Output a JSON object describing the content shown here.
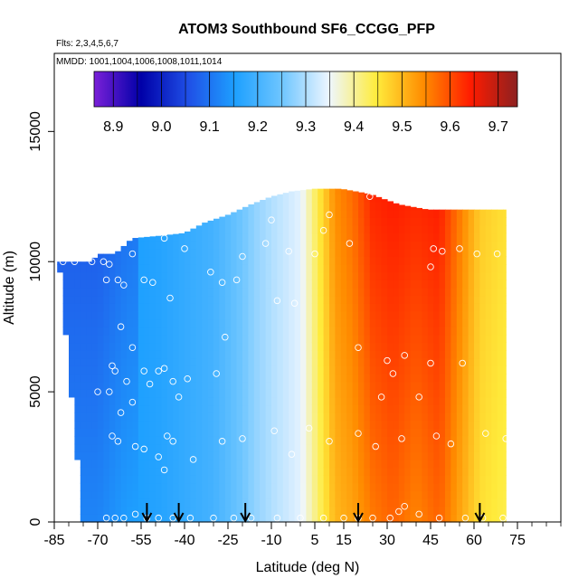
{
  "chart_data": {
    "type": "heatmap",
    "title": "ATOM3 Southbound SF6_CCGG_PFP",
    "annotations": [
      "Flts: 2,3,4,5,6,7",
      "MMDD: 1001,1004,1006,1008,1011,1014"
    ],
    "xlabel": "Latitude (deg N)",
    "ylabel": "Altitude (m)",
    "xlim": [
      -85,
      90
    ],
    "ylim": [
      0,
      18000
    ],
    "x_ticks": [
      -85,
      -70,
      -55,
      -40,
      -25,
      -10,
      5,
      15,
      30,
      45,
      60,
      75
    ],
    "y_ticks": [
      0,
      5000,
      10000,
      15000
    ],
    "colorbar": {
      "min": 8.86,
      "max": 9.74,
      "ticks": [
        8.9,
        9.0,
        9.1,
        9.2,
        9.3,
        9.4,
        9.5,
        9.6,
        9.7
      ],
      "colors": [
        "#7a20d8",
        "#0000a8",
        "#1f4fe6",
        "#1ea0ff",
        "#6fc6ff",
        "#eef6ff",
        "#ffec3c",
        "#ff8c00",
        "#ff1c00",
        "#8c2020"
      ],
      "placement": "top-inside"
    },
    "profile": {
      "lat": [
        -70,
        -60,
        -50,
        -40,
        -30,
        -22,
        -15,
        -8,
        0,
        6,
        12,
        18,
        25,
        32,
        40,
        48,
        55,
        62,
        70
      ],
      "z": [
        9.12,
        9.15,
        9.16,
        9.18,
        9.2,
        9.24,
        9.28,
        9.31,
        9.34,
        9.42,
        9.5,
        9.52,
        9.56,
        9.58,
        9.55,
        9.58,
        9.52,
        9.46,
        9.44
      ],
      "alt_effect": [
        0.0,
        0.0,
        0.0,
        0.0,
        0.0,
        0.0,
        0.0,
        0.0,
        0.0,
        0.02,
        0.04,
        0.05,
        0.07,
        0.06,
        0.08,
        0.06,
        0.04,
        0.02,
        0.02
      ]
    },
    "coverage": [
      {
        "lat": -73,
        "top": 10000
      },
      {
        "lat": -69,
        "top": 10300
      },
      {
        "lat": -64,
        "top": 10300
      },
      {
        "lat": -58,
        "top": 10900
      },
      {
        "lat": -48,
        "top": 11000
      },
      {
        "lat": -40,
        "top": 11100
      },
      {
        "lat": -33,
        "top": 11500
      },
      {
        "lat": -25,
        "top": 11800
      },
      {
        "lat": -17,
        "top": 12200
      },
      {
        "lat": -10,
        "top": 12500
      },
      {
        "lat": -3,
        "top": 12700
      },
      {
        "lat": 5,
        "top": 12800
      },
      {
        "lat": 14,
        "top": 12800
      },
      {
        "lat": 24,
        "top": 12600
      },
      {
        "lat": 34,
        "top": 12200
      },
      {
        "lat": 44,
        "top": 12000
      },
      {
        "lat": 54,
        "top": 12000
      },
      {
        "lat": 64,
        "top": 12000
      },
      {
        "lat": 71,
        "top": 12000
      }
    ],
    "bottom_edge": [
      [
        -74,
        0
      ],
      [
        -82,
        9500
      ]
    ],
    "points": [
      [
        -82,
        10000
      ],
      [
        -78,
        10000
      ],
      [
        -72,
        10000
      ],
      [
        -68,
        10000
      ],
      [
        -66,
        9900
      ],
      [
        -61,
        10900
      ],
      [
        -58,
        10300
      ],
      [
        -67,
        9300
      ],
      [
        -63,
        9300
      ],
      [
        -61,
        9100
      ],
      [
        -54,
        9300
      ],
      [
        -51,
        9200
      ],
      [
        -47,
        10900
      ],
      [
        -40,
        10500
      ],
      [
        -45,
        8600
      ],
      [
        -31,
        9600
      ],
      [
        -20,
        10200
      ],
      [
        -27,
        9200
      ],
      [
        -22,
        9300
      ],
      [
        -14,
        12600
      ],
      [
        -10,
        11600
      ],
      [
        -12,
        10700
      ],
      [
        -4,
        10400
      ],
      [
        -8,
        8500
      ],
      [
        -2,
        8400
      ],
      [
        5,
        10300
      ],
      [
        8,
        11200
      ],
      [
        10,
        11800
      ],
      [
        17,
        10700
      ],
      [
        24,
        12500
      ],
      [
        -26,
        7100
      ],
      [
        -62,
        7500
      ],
      [
        -58,
        6700
      ],
      [
        -70,
        5000
      ],
      [
        -66,
        5000
      ],
      [
        -65,
        6000
      ],
      [
        -64,
        5800
      ],
      [
        -60,
        5400
      ],
      [
        -58,
        4600
      ],
      [
        -54,
        5800
      ],
      [
        -52,
        5300
      ],
      [
        -49,
        5800
      ],
      [
        -47,
        5900
      ],
      [
        -44,
        5400
      ],
      [
        -42,
        4800
      ],
      [
        -39,
        5500
      ],
      [
        -29,
        5700
      ],
      [
        -62,
        4200
      ],
      [
        -65,
        3300
      ],
      [
        -63,
        3100
      ],
      [
        -57,
        2900
      ],
      [
        -54,
        2800
      ],
      [
        -49,
        2500
      ],
      [
        -46,
        3300
      ],
      [
        -44,
        3100
      ],
      [
        -47,
        2000
      ],
      [
        -37,
        2400
      ],
      [
        -27,
        3100
      ],
      [
        -20,
        3200
      ],
      [
        -9,
        3500
      ],
      [
        -3,
        2600
      ],
      [
        3,
        3600
      ],
      [
        10,
        3100
      ],
      [
        20,
        3400
      ],
      [
        26,
        2900
      ],
      [
        32,
        5700
      ],
      [
        35,
        3200
      ],
      [
        36,
        6400
      ],
      [
        41,
        4800
      ],
      [
        47,
        3300
      ],
      [
        52,
        3000
      ],
      [
        56,
        6100
      ],
      [
        45,
        9800
      ],
      [
        46,
        10500
      ],
      [
        49,
        10400
      ],
      [
        55,
        10500
      ],
      [
        61,
        10300
      ],
      [
        68,
        10300
      ],
      [
        64,
        3400
      ],
      [
        71,
        3200
      ],
      [
        20,
        6700
      ],
      [
        30,
        6200
      ],
      [
        45,
        6100
      ],
      [
        28,
        4800
      ],
      [
        -67,
        150
      ],
      [
        -64,
        150
      ],
      [
        -61,
        150
      ],
      [
        -57,
        300
      ],
      [
        -53,
        150
      ],
      [
        -49,
        150
      ],
      [
        -44,
        150
      ],
      [
        -38,
        150
      ],
      [
        -30,
        150
      ],
      [
        -23,
        150
      ],
      [
        -17,
        150
      ],
      [
        -8,
        150
      ],
      [
        0,
        150
      ],
      [
        8,
        150
      ],
      [
        15,
        150
      ],
      [
        20,
        150
      ],
      [
        25,
        150
      ],
      [
        31,
        150
      ],
      [
        34,
        400
      ],
      [
        36,
        600
      ],
      [
        41,
        300
      ],
      [
        48,
        150
      ],
      [
        57,
        150
      ],
      [
        63,
        150
      ],
      [
        70,
        150
      ]
    ],
    "arrows_lat": [
      -53,
      -42,
      -19,
      20,
      62
    ]
  }
}
